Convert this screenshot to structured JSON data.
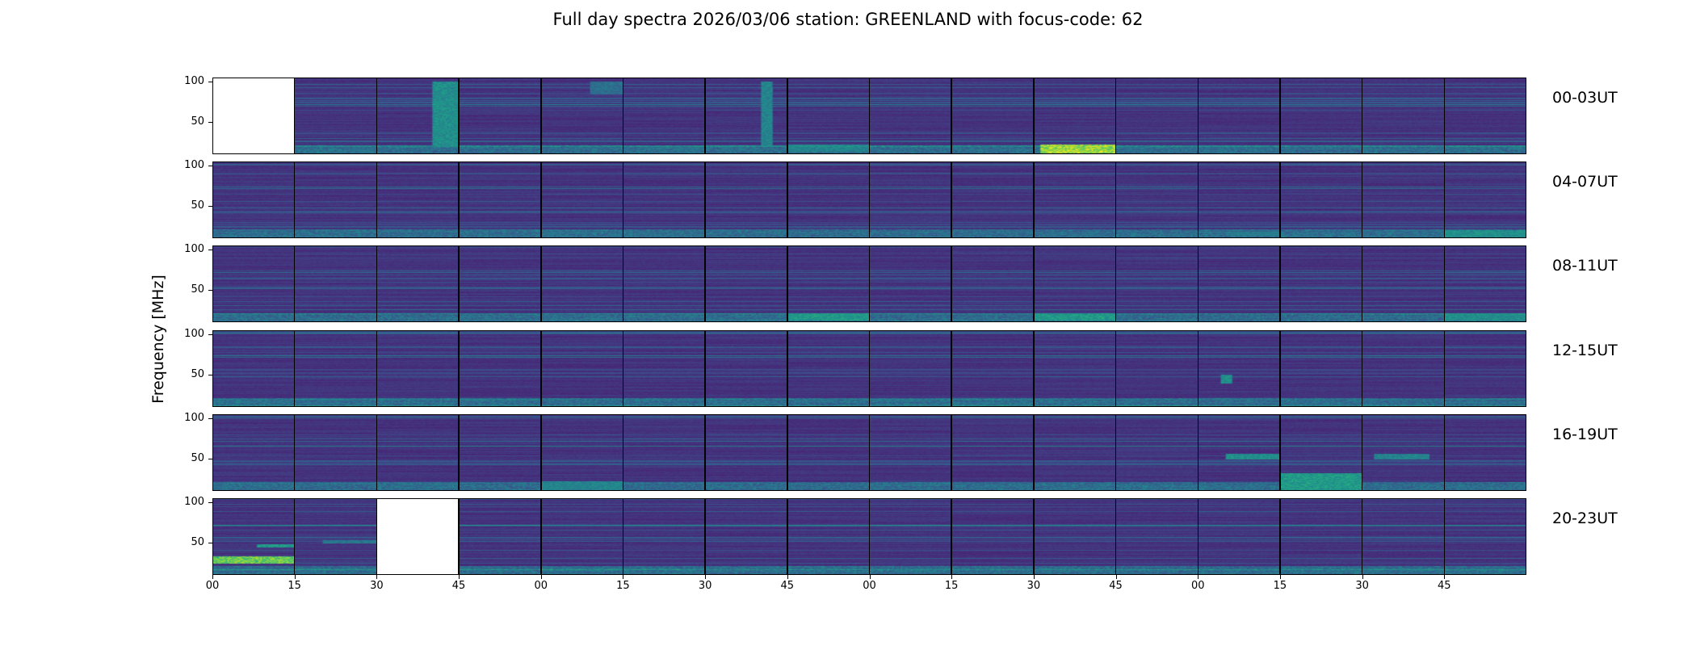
{
  "chart_data": {
    "type": "heatmap",
    "title": "Full day spectra 2026/03/06 station: GREENLAND with focus-code: 62",
    "ylabel": "Frequency [MHz]",
    "xlabel": "",
    "colormap": "viridis",
    "ylim": [
      10,
      105
    ],
    "yticks": [
      "100",
      "50"
    ],
    "ytick_values": [
      100,
      50
    ],
    "xticks": [
      "00",
      "15",
      "30",
      "45",
      "00",
      "15",
      "30",
      "45",
      "00",
      "15",
      "30",
      "45",
      "00",
      "15",
      "30",
      "45"
    ],
    "panels_per_row": 16,
    "panel_minutes": 15,
    "rows": [
      {
        "label": "00-03UT",
        "missing": [
          0
        ],
        "bursts": [
          {
            "panel": 2,
            "minute_from": 10,
            "minute_to": 15,
            "fmin": 20,
            "fmax": 100,
            "level": 0.55
          },
          {
            "panel": 6,
            "minute_from": 10,
            "minute_to": 12,
            "fmin": 20,
            "fmax": 100,
            "level": 0.5
          },
          {
            "panel": 4,
            "minute_from": 9,
            "minute_to": 15,
            "fmin": 85,
            "fmax": 100,
            "level": 0.4
          },
          {
            "panel": 10,
            "minute_from": 1,
            "minute_to": 15,
            "fmin": 12,
            "fmax": 22,
            "level": 0.95
          },
          {
            "panel": 7,
            "minute_from": 0,
            "minute_to": 15,
            "fmin": 14,
            "fmax": 22,
            "level": 0.5
          }
        ]
      },
      {
        "label": "04-07UT",
        "missing": [],
        "bursts": [
          {
            "panel": 15,
            "minute_from": 0,
            "minute_to": 15,
            "fmin": 12,
            "fmax": 20,
            "level": 0.55
          },
          {
            "panel": 12,
            "minute_from": 5,
            "minute_to": 15,
            "fmin": 14,
            "fmax": 18,
            "level": 0.45
          }
        ]
      },
      {
        "label": "08-11UT",
        "missing": [],
        "bursts": [
          {
            "panel": 7,
            "minute_from": 0,
            "minute_to": 15,
            "fmin": 13,
            "fmax": 21,
            "level": 0.6
          },
          {
            "panel": 10,
            "minute_from": 0,
            "minute_to": 15,
            "fmin": 13,
            "fmax": 21,
            "level": 0.6
          },
          {
            "panel": 15,
            "minute_from": 0,
            "minute_to": 15,
            "fmin": 13,
            "fmax": 21,
            "level": 0.55
          }
        ]
      },
      {
        "label": "12-15UT",
        "missing": [],
        "bursts": [
          {
            "panel": 12,
            "minute_from": 4,
            "minute_to": 6,
            "fmin": 40,
            "fmax": 50,
            "level": 0.55
          }
        ]
      },
      {
        "label": "16-19UT",
        "missing": [],
        "bursts": [
          {
            "panel": 13,
            "minute_from": 0,
            "minute_to": 15,
            "fmin": 12,
            "fmax": 32,
            "level": 0.6
          },
          {
            "panel": 4,
            "minute_from": 0,
            "minute_to": 15,
            "fmin": 12,
            "fmax": 22,
            "level": 0.5
          },
          {
            "panel": 12,
            "minute_from": 5,
            "minute_to": 15,
            "fmin": 50,
            "fmax": 56,
            "level": 0.55
          },
          {
            "panel": 14,
            "minute_from": 2,
            "minute_to": 12,
            "fmin": 50,
            "fmax": 56,
            "level": 0.5
          }
        ]
      },
      {
        "label": "20-23UT",
        "missing": [
          2
        ],
        "bursts": [
          {
            "panel": 0,
            "minute_from": 0,
            "minute_to": 15,
            "fmin": 25,
            "fmax": 33,
            "level": 0.85
          },
          {
            "panel": 0,
            "minute_from": 8,
            "minute_to": 15,
            "fmin": 45,
            "fmax": 48,
            "level": 0.6
          },
          {
            "panel": 1,
            "minute_from": 5,
            "minute_to": 15,
            "fmin": 50,
            "fmax": 53,
            "level": 0.45
          }
        ]
      }
    ]
  }
}
